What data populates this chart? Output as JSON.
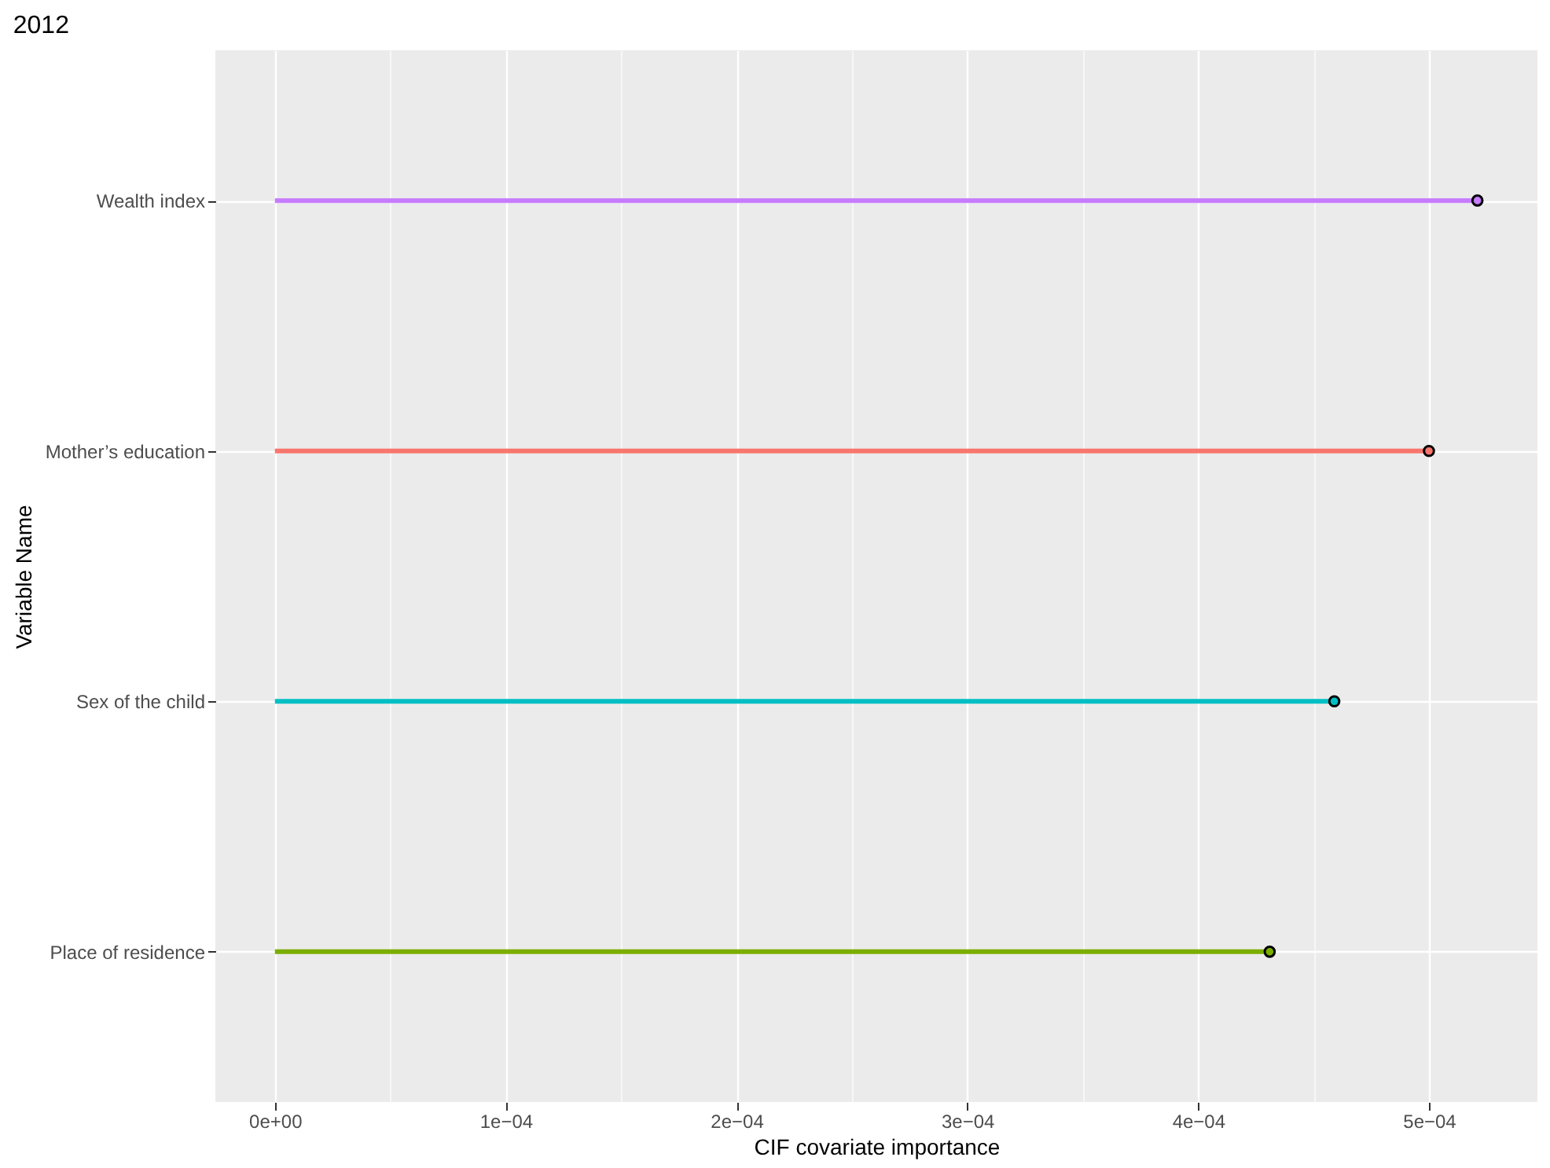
{
  "chart_data": {
    "type": "lollipop",
    "title": "2012",
    "xlabel": "CIF covariate  importance",
    "ylabel": "Variable Name",
    "orientation": "horizontal",
    "categories": [
      "Wealth index",
      "Mother’s education",
      "Sex of the child",
      "Place of residence"
    ],
    "values": [
      0.000521,
      0.0005,
      0.000459,
      0.000431
    ],
    "colors": [
      "#c77cff",
      "#f8766d",
      "#00bfc4",
      "#7cae00"
    ],
    "marker": "circle",
    "xlim": [
      -2.58e-05,
      0.000547
    ],
    "xticks": [
      {
        "value": 0,
        "label": "0e+00"
      },
      {
        "value": 5e-05,
        "label": null
      },
      {
        "value": 0.0001,
        "label": "1e−04"
      },
      {
        "value": 0.00015,
        "label": null
      },
      {
        "value": 0.0002,
        "label": "2e−04"
      },
      {
        "value": 0.00025,
        "label": null
      },
      {
        "value": 0.0003,
        "label": "3e−04"
      },
      {
        "value": 0.00035,
        "label": null
      },
      {
        "value": 0.0004,
        "label": "4e−04"
      },
      {
        "value": 0.00045,
        "label": null
      },
      {
        "value": 0.0005,
        "label": "5e−04"
      }
    ],
    "grid": true,
    "legend": false
  }
}
